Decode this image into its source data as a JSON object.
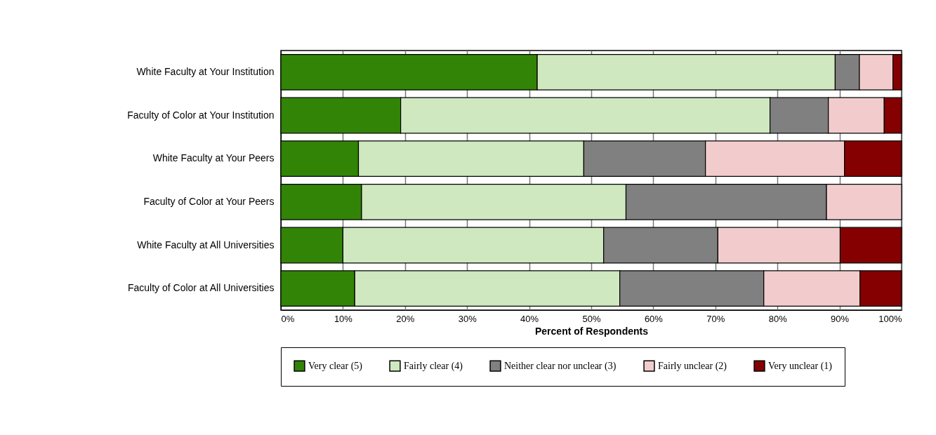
{
  "chart_data": {
    "type": "bar",
    "orientation": "horizontal",
    "stacked": true,
    "xlabel": "Percent of Respondents",
    "categories": [
      "White Faculty at Your Institution",
      "Faculty of Color at Your Institution",
      "White Faculty at Your Peers",
      "Faculty of Color at Your Peers",
      "White Faculty at All Universities",
      "Faculty of Color at All Universities"
    ],
    "series": [
      {
        "name": "Very clear (5)",
        "color": "#328406",
        "values": [
          41.3,
          19.3,
          12.5,
          13.0,
          10.0,
          11.9
        ]
      },
      {
        "name": "Fairly clear (4)",
        "color": "#cfe8bf",
        "values": [
          48.0,
          59.5,
          36.3,
          42.6,
          42.0,
          42.7
        ]
      },
      {
        "name": "Neither clear nor unclear (3)",
        "color": "#808080",
        "values": [
          3.9,
          9.4,
          19.6,
          32.3,
          18.4,
          23.2
        ]
      },
      {
        "name": "Fairly unclear (2)",
        "color": "#f2cccc",
        "values": [
          5.4,
          9.0,
          22.4,
          12.1,
          19.7,
          15.5
        ]
      },
      {
        "name": "Very unclear (1)",
        "color": "#850000",
        "values": [
          1.4,
          2.8,
          9.2,
          null,
          9.9,
          6.7
        ]
      }
    ],
    "xlim": [
      0,
      100
    ],
    "xticks": [
      {
        "value": 0,
        "label": "0%"
      },
      {
        "value": 10,
        "label": "10%"
      },
      {
        "value": 20,
        "label": "20%"
      },
      {
        "value": 30,
        "label": "30%"
      },
      {
        "value": 40,
        "label": "40%"
      },
      {
        "value": 50,
        "label": "50%"
      },
      {
        "value": 60,
        "label": "60%"
      },
      {
        "value": 70,
        "label": "70%"
      },
      {
        "value": 80,
        "label": "80%"
      },
      {
        "value": 90,
        "label": "90%"
      },
      {
        "value": 100,
        "label": "100%"
      }
    ],
    "grid": "x",
    "legend": "bottom"
  }
}
